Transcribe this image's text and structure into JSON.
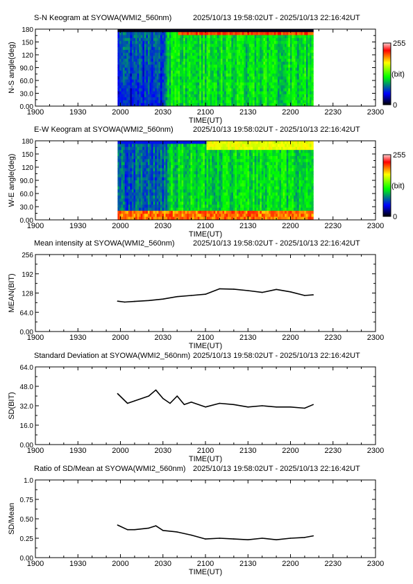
{
  "time_range": "2025/10/13 19:58:02UT - 2025/10/13 22:16:42UT",
  "x_ticks": [
    "1900",
    "1930",
    "2000",
    "2030",
    "2100",
    "2130",
    "2200",
    "2230",
    "2300"
  ],
  "xlabel": "TIME(UT)",
  "colorbar": {
    "max": "255",
    "unit": "(bit)",
    "min": "0"
  },
  "chart_data": [
    {
      "type": "heatmap",
      "title": "S-N Keogram at SYOWA(WMI2_560nm)",
      "ylabel": "N-S angle(deg)",
      "xlabel": "TIME(UT)",
      "xlim": [
        1900,
        2300
      ],
      "ylim": [
        0,
        180
      ],
      "data_x_range": [
        1958,
        2216
      ],
      "y_ticks": [
        "0.00",
        "30.0",
        "60.0",
        "90.0",
        "120",
        "150",
        "180"
      ],
      "color_scale": [
        "#000000",
        "#0000ff",
        "#00ff00",
        "#ffff00",
        "#ff0000",
        "#ffc0c0"
      ],
      "value_range": [
        0,
        255
      ]
    },
    {
      "type": "heatmap",
      "title": "E-W Keogram at SYOWA(WMI2_560nm)",
      "ylabel": "W-E angle(deg)",
      "xlabel": "TIME(UT)",
      "xlim": [
        1900,
        2300
      ],
      "ylim": [
        0,
        180
      ],
      "data_x_range": [
        1958,
        2216
      ],
      "y_ticks": [
        "0.00",
        "30.0",
        "60.0",
        "90.0",
        "120",
        "150",
        "180"
      ],
      "color_scale": [
        "#000000",
        "#0000ff",
        "#00ff00",
        "#ffff00",
        "#ff0000",
        "#ffc0c0"
      ],
      "value_range": [
        0,
        255
      ]
    },
    {
      "type": "line",
      "title": "Mean intensity at SYOWA(WMI2_560nm)",
      "ylabel": "MEAN(BIT)",
      "xlabel": "TIME(UT)",
      "xlim": [
        1900,
        2300
      ],
      "ylim": [
        0,
        256
      ],
      "y_ticks": [
        "0.00",
        "64.0",
        "128",
        "192",
        "256"
      ],
      "x": [
        1958,
        2003,
        2010,
        2020,
        2030,
        2040,
        2050,
        2100,
        2110,
        2120,
        2130,
        2140,
        2150,
        2200,
        2210,
        2216
      ],
      "y": [
        101,
        98,
        100,
        103,
        108,
        116,
        120,
        124,
        142,
        141,
        136,
        130,
        140,
        132,
        120,
        122
      ]
    },
    {
      "type": "line",
      "title": "Standard Deviation at SYOWA(WMI2_560nm)",
      "ylabel": "SD(BIT)",
      "xlabel": "TIME(UT)",
      "xlim": [
        1900,
        2300
      ],
      "ylim": [
        0,
        64
      ],
      "y_ticks": [
        "0.00",
        "16.0",
        "32.0",
        "48.0",
        "64.0"
      ],
      "x": [
        1958,
        2005,
        2010,
        2020,
        2025,
        2030,
        2035,
        2040,
        2045,
        2050,
        2100,
        2110,
        2120,
        2130,
        2140,
        2150,
        2200,
        2210,
        2216
      ],
      "y": [
        42,
        34,
        36,
        40,
        45,
        38,
        34,
        40,
        33,
        35,
        31,
        34,
        33,
        31,
        32,
        31,
        31,
        30,
        33
      ]
    },
    {
      "type": "line",
      "title": "Ratio of SD/Mean at SYOWA(WMI2_560nm)",
      "ylabel": "SD/Mean",
      "xlabel": "TIME(UT)",
      "xlim": [
        1900,
        2300
      ],
      "ylim": [
        0,
        1
      ],
      "y_ticks": [
        "0.00",
        "0.25",
        "0.50",
        "0.75",
        "1.0"
      ],
      "x": [
        1958,
        2005,
        2010,
        2020,
        2025,
        2030,
        2040,
        2050,
        2100,
        2110,
        2120,
        2130,
        2140,
        2150,
        2200,
        2210,
        2216
      ],
      "y": [
        0.42,
        0.36,
        0.36,
        0.38,
        0.41,
        0.35,
        0.33,
        0.29,
        0.24,
        0.25,
        0.24,
        0.23,
        0.25,
        0.23,
        0.25,
        0.26,
        0.28
      ]
    }
  ]
}
